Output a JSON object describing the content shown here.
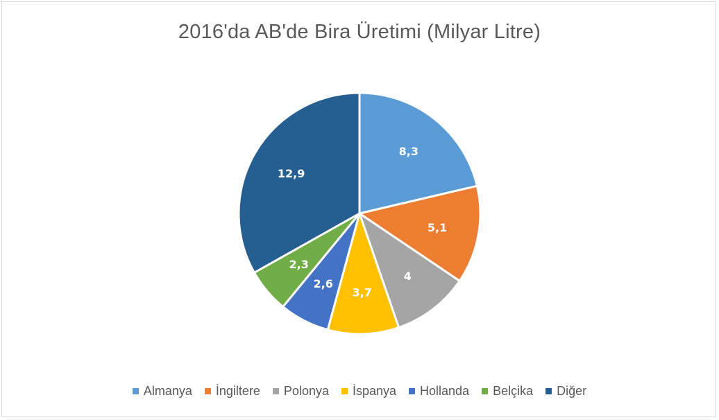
{
  "chart_data": {
    "type": "pie",
    "title": "2016'da AB'de Bira Üretimi (Milyar Litre)",
    "categories": [
      "Almanya",
      "İngiltere",
      "Polonya",
      "İspanya",
      "Hollanda",
      "Belçika",
      "Diğer"
    ],
    "values": [
      8.3,
      5.1,
      4,
      3.7,
      2.6,
      2.3,
      12.9
    ],
    "data_labels": [
      "8,3",
      "5,1",
      "4",
      "3,7",
      "2,6",
      "2,3",
      "12,9"
    ],
    "colors": [
      "#5b9bd5",
      "#ed7d31",
      "#a5a5a5",
      "#ffc000",
      "#4472c4",
      "#70ad47",
      "#255e91"
    ],
    "legend_position": "bottom",
    "start_angle": "12 o'clock",
    "direction": "clockwise"
  }
}
